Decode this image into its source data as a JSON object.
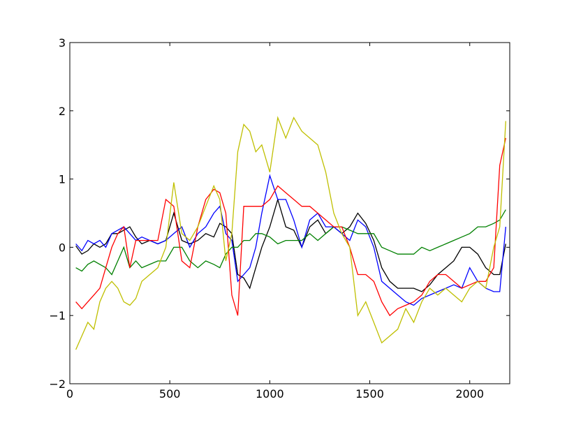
{
  "chart_data": {
    "type": "line",
    "title": "",
    "xlabel": "",
    "ylabel": "",
    "xlim": [
      0,
      2200
    ],
    "ylim": [
      -2,
      3
    ],
    "xticks": [
      0,
      500,
      1000,
      1500,
      2000
    ],
    "yticks": [
      -2,
      -1,
      0,
      1,
      2,
      3
    ],
    "xtick_labels": [
      "0",
      "500",
      "1000",
      "1500",
      "2000"
    ],
    "ytick_labels": [
      "−2",
      "−1",
      "0",
      "1",
      "2",
      "3"
    ],
    "grid": false,
    "series": [
      {
        "color": "#000000",
        "x": [
          30,
          60,
          90,
          120,
          150,
          180,
          210,
          240,
          270,
          300,
          330,
          360,
          400,
          440,
          480,
          520,
          560,
          600,
          640,
          680,
          720,
          750,
          780,
          810,
          840,
          870,
          900,
          930,
          960,
          1000,
          1040,
          1080,
          1120,
          1160,
          1200,
          1240,
          1280,
          1320,
          1360,
          1400,
          1440,
          1480,
          1520,
          1560,
          1600,
          1640,
          1680,
          1720,
          1760,
          1800,
          1840,
          1880,
          1920,
          1960,
          2000,
          2040,
          2080,
          2120,
          2150,
          2180
        ],
        "y": [
          0.02,
          -0.1,
          -0.05,
          0.05,
          0.0,
          0.05,
          0.2,
          0.2,
          0.25,
          0.3,
          0.15,
          0.05,
          0.1,
          0.05,
          0.1,
          0.5,
          0.1,
          0.05,
          0.1,
          0.2,
          0.15,
          0.35,
          0.3,
          0.2,
          -0.4,
          -0.45,
          -0.6,
          -0.3,
          0.0,
          0.3,
          0.7,
          0.3,
          0.25,
          0.0,
          0.3,
          0.4,
          0.2,
          0.3,
          0.2,
          0.3,
          0.5,
          0.35,
          0.1,
          -0.3,
          -0.5,
          -0.6,
          -0.6,
          -0.6,
          -0.65,
          -0.55,
          -0.4,
          -0.3,
          -0.2,
          0.0,
          0.0,
          -0.1,
          -0.3,
          -0.4,
          -0.4,
          0.05
        ]
      },
      {
        "color": "#0000ff",
        "x": [
          30,
          60,
          90,
          120,
          150,
          180,
          210,
          240,
          270,
          300,
          330,
          360,
          400,
          440,
          480,
          520,
          560,
          600,
          640,
          680,
          720,
          750,
          780,
          810,
          840,
          870,
          900,
          930,
          960,
          1000,
          1040,
          1080,
          1120,
          1160,
          1200,
          1240,
          1280,
          1320,
          1360,
          1400,
          1440,
          1480,
          1520,
          1560,
          1600,
          1640,
          1680,
          1720,
          1760,
          1800,
          1840,
          1880,
          1920,
          1960,
          2000,
          2040,
          2080,
          2120,
          2150,
          2180
        ],
        "y": [
          0.05,
          -0.05,
          0.1,
          0.05,
          0.1,
          0.0,
          0.2,
          0.25,
          0.3,
          0.2,
          0.1,
          0.15,
          0.1,
          0.05,
          0.1,
          0.2,
          0.3,
          0.0,
          0.2,
          0.3,
          0.5,
          0.6,
          0.2,
          0.1,
          -0.5,
          -0.4,
          -0.3,
          0.0,
          0.5,
          1.05,
          0.7,
          0.7,
          0.4,
          0.0,
          0.4,
          0.5,
          0.3,
          0.3,
          0.2,
          0.1,
          0.4,
          0.3,
          0.0,
          -0.5,
          -0.6,
          -0.7,
          -0.8,
          -0.85,
          -0.75,
          -0.7,
          -0.65,
          -0.6,
          -0.55,
          -0.6,
          -0.3,
          -0.5,
          -0.6,
          -0.65,
          -0.65,
          0.3
        ]
      },
      {
        "color": "#008000",
        "x": [
          30,
          60,
          90,
          120,
          150,
          180,
          210,
          240,
          270,
          300,
          330,
          360,
          400,
          440,
          480,
          520,
          560,
          600,
          640,
          680,
          720,
          750,
          780,
          810,
          840,
          870,
          900,
          930,
          960,
          1000,
          1040,
          1080,
          1120,
          1160,
          1200,
          1240,
          1280,
          1320,
          1360,
          1400,
          1440,
          1480,
          1520,
          1560,
          1600,
          1640,
          1680,
          1720,
          1760,
          1800,
          1840,
          1880,
          1920,
          1960,
          2000,
          2040,
          2080,
          2120,
          2150,
          2180
        ],
        "y": [
          -0.3,
          -0.35,
          -0.25,
          -0.2,
          -0.25,
          -0.3,
          -0.4,
          -0.2,
          0.0,
          -0.3,
          -0.2,
          -0.3,
          -0.25,
          -0.2,
          -0.2,
          0.0,
          0.0,
          -0.2,
          -0.3,
          -0.2,
          -0.25,
          -0.3,
          -0.1,
          0.0,
          0.0,
          0.1,
          0.1,
          0.2,
          0.2,
          0.15,
          0.05,
          0.1,
          0.1,
          0.1,
          0.2,
          0.1,
          0.2,
          0.3,
          0.3,
          0.25,
          0.2,
          0.2,
          0.2,
          0.0,
          -0.05,
          -0.1,
          -0.1,
          -0.1,
          0.0,
          -0.05,
          0.0,
          0.05,
          0.1,
          0.15,
          0.2,
          0.3,
          0.3,
          0.35,
          0.4,
          0.55
        ]
      },
      {
        "color": "#ff0000",
        "x": [
          30,
          60,
          90,
          120,
          150,
          180,
          210,
          240,
          270,
          300,
          330,
          360,
          400,
          440,
          480,
          520,
          560,
          600,
          640,
          680,
          720,
          750,
          780,
          810,
          840,
          870,
          900,
          930,
          960,
          1000,
          1040,
          1080,
          1120,
          1160,
          1200,
          1240,
          1280,
          1320,
          1360,
          1400,
          1440,
          1480,
          1520,
          1560,
          1600,
          1640,
          1680,
          1720,
          1760,
          1800,
          1840,
          1880,
          1920,
          1960,
          2000,
          2040,
          2080,
          2120,
          2150,
          2180
        ],
        "y": [
          -0.8,
          -0.9,
          -0.8,
          -0.7,
          -0.6,
          -0.3,
          0.0,
          0.2,
          0.3,
          -0.3,
          0.1,
          0.1,
          0.1,
          0.1,
          0.7,
          0.6,
          -0.2,
          -0.3,
          0.3,
          0.7,
          0.85,
          0.8,
          0.5,
          -0.7,
          -1.0,
          0.6,
          0.6,
          0.6,
          0.6,
          0.7,
          0.9,
          0.8,
          0.7,
          0.6,
          0.6,
          0.5,
          0.4,
          0.3,
          0.3,
          0.0,
          -0.4,
          -0.4,
          -0.5,
          -0.8,
          -1.0,
          -0.9,
          -0.85,
          -0.8,
          -0.7,
          -0.5,
          -0.4,
          -0.4,
          -0.5,
          -0.6,
          -0.55,
          -0.5,
          -0.5,
          -0.3,
          1.2,
          1.6
        ]
      },
      {
        "color": "#bfbf00",
        "x": [
          30,
          60,
          90,
          120,
          150,
          180,
          210,
          240,
          270,
          300,
          330,
          360,
          400,
          440,
          480,
          520,
          560,
          600,
          640,
          680,
          720,
          750,
          780,
          810,
          840,
          870,
          900,
          930,
          960,
          1000,
          1040,
          1080,
          1120,
          1160,
          1200,
          1240,
          1280,
          1320,
          1360,
          1400,
          1440,
          1480,
          1520,
          1560,
          1600,
          1640,
          1680,
          1720,
          1760,
          1800,
          1840,
          1880,
          1920,
          1960,
          2000,
          2040,
          2080,
          2120,
          2150,
          2180
        ],
        "y": [
          -1.5,
          -1.3,
          -1.1,
          -1.2,
          -0.8,
          -0.6,
          -0.5,
          -0.6,
          -0.8,
          -0.85,
          -0.75,
          -0.5,
          -0.4,
          -0.3,
          0.0,
          0.95,
          0.2,
          0.1,
          0.3,
          0.6,
          0.9,
          0.7,
          -0.2,
          0.2,
          1.4,
          1.8,
          1.7,
          1.4,
          1.5,
          1.1,
          1.9,
          1.6,
          1.9,
          1.7,
          1.6,
          1.5,
          1.1,
          0.5,
          0.2,
          0.0,
          -1.0,
          -0.8,
          -1.1,
          -1.4,
          -1.3,
          -1.2,
          -0.9,
          -1.1,
          -0.8,
          -0.6,
          -0.7,
          -0.6,
          -0.7,
          -0.8,
          -0.6,
          -0.5,
          -0.6,
          0.0,
          0.3,
          1.85
        ]
      }
    ]
  }
}
